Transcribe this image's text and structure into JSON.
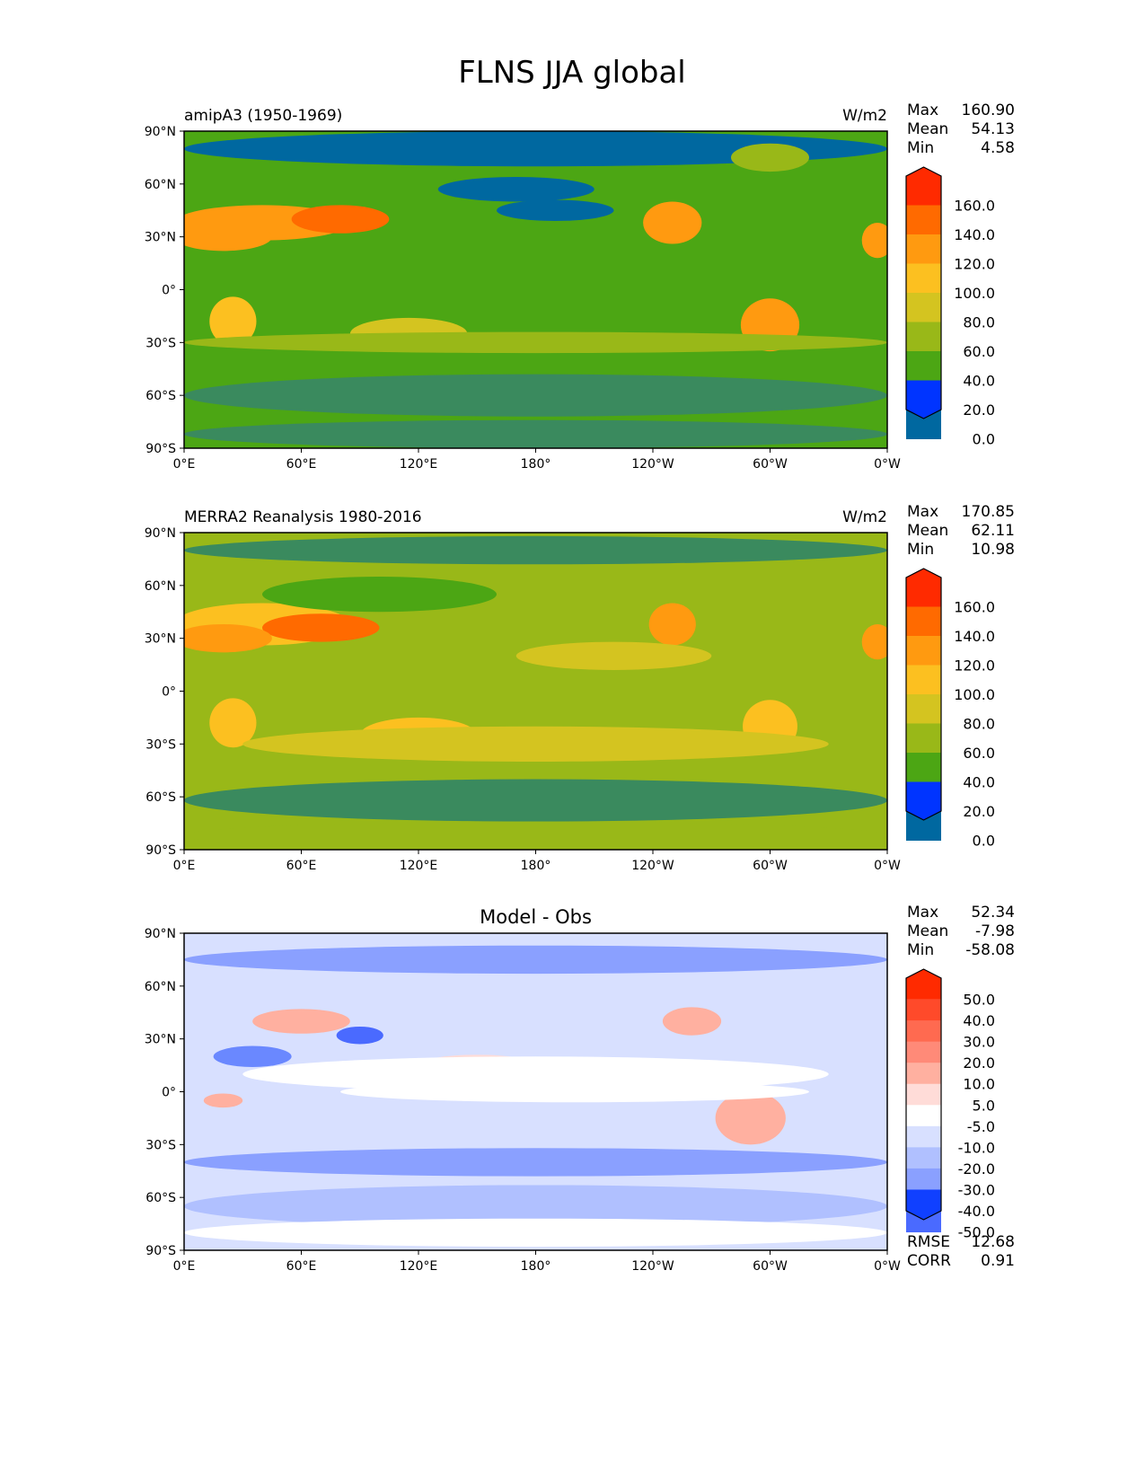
{
  "chart_data": {
    "type": "heatmap",
    "title": "FLNS JJA global",
    "x_ticks": [
      "0°E",
      "60°E",
      "120°E",
      "180°",
      "120°W",
      "60°W",
      "0°W"
    ],
    "y_ticks": [
      "90°N",
      "60°N",
      "30°N",
      "0°",
      "30°S",
      "60°S",
      "90°S"
    ],
    "xlim": [
      0,
      360
    ],
    "ylim": [
      -90,
      90
    ],
    "panels": [
      {
        "left_title": "amipA3 (1950-1969)",
        "right_title": "W/m2",
        "stats": [
          {
            "label": "Max",
            "value": "160.90"
          },
          {
            "label": "Mean",
            "value": "54.13"
          },
          {
            "label": "Min",
            "value": "4.58"
          }
        ],
        "colorbar_labels": [
          "160.0",
          "140.0",
          "120.0",
          "100.0",
          "80.0",
          "60.0",
          "40.0",
          "20.0",
          "0.0"
        ],
        "colors": [
          "#ff2a00",
          "#ff6a00",
          "#ff9a10",
          "#fcc020",
          "#d4c420",
          "#99b818",
          "#4ca614",
          "#3a8a5e",
          "#0068a0",
          "#0034ff"
        ],
        "background_level": 6
      },
      {
        "left_title": "MERRA2 Reanalysis 1980-2016",
        "right_title": "W/m2",
        "stats": [
          {
            "label": "Max",
            "value": "170.85"
          },
          {
            "label": "Mean",
            "value": "62.11"
          },
          {
            "label": "Min",
            "value": "10.98"
          }
        ],
        "colorbar_labels": [
          "160.0",
          "140.0",
          "120.0",
          "100.0",
          "80.0",
          "60.0",
          "40.0",
          "20.0",
          "0.0"
        ],
        "colors": [
          "#ff2a00",
          "#ff6a00",
          "#ff9a10",
          "#fcc020",
          "#d4c420",
          "#99b818",
          "#4ca614",
          "#3a8a5e",
          "#0068a0",
          "#0034ff"
        ],
        "background_level": 5
      },
      {
        "center_title": "Model - Obs",
        "stats": [
          {
            "label": "Max",
            "value": "52.34"
          },
          {
            "label": "Mean",
            "value": "-7.98"
          },
          {
            "label": "Min",
            "value": "-58.08"
          }
        ],
        "colorbar_labels": [
          "50.0",
          "40.0",
          "30.0",
          "20.0",
          "10.0",
          "5.0",
          "-5.0",
          "-10.0",
          "-20.0",
          "-30.0",
          "-40.0",
          "-50.0"
        ],
        "colors": [
          "#ff2a00",
          "#ff4a2a",
          "#ff6a50",
          "#ff8a78",
          "#ffb0a0",
          "#ffdcd8",
          "#ffffff",
          "#d8e0ff",
          "#b0c0ff",
          "#8aa0ff",
          "#6a88ff",
          "#4a6aff",
          "#1040ff"
        ],
        "background_level": 7,
        "footer_stats": [
          {
            "label": "RMSE",
            "value": "12.68"
          },
          {
            "label": "CORR",
            "value": "0.91"
          }
        ]
      }
    ]
  }
}
